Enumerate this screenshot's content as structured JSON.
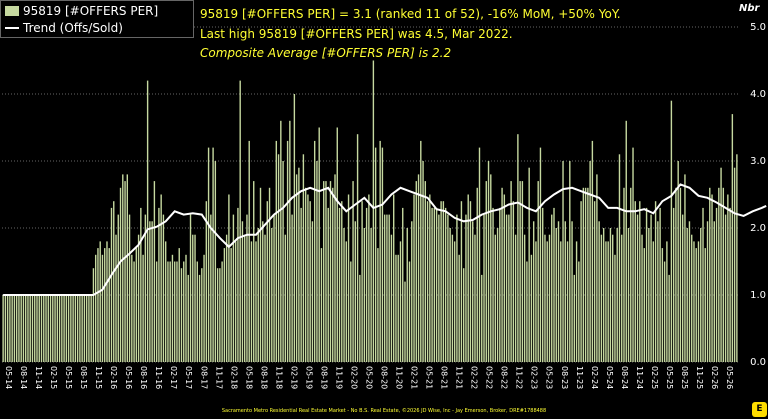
{
  "legend": {
    "bar_label": "95819 [#OFFERS PER]",
    "line_label": "Trend (Offs/Sold)"
  },
  "annotations": {
    "line1": "95819 [#OFFERS PER] = 3.1 (ranked 11 of 52), -16% MoM, +50% YoY.",
    "line2": "Last high 95819 [#OFFERS PER] was 4.5, Mar 2022.",
    "line3": "Composite Average [#OFFERS PER] is 2.2"
  },
  "footer": "Sacramento Metro Residential Real Estate Market - No B.S. Real Estate, ©2026 JD Wise, Inc - Jay Emerson, Broker, DRE#1788488",
  "colors": {
    "bar": "#c6d9a0",
    "trend": "#ffffff",
    "grid": "#666666",
    "annotation": "#ffff33",
    "background": "#000000"
  },
  "chart_data": {
    "type": "bar",
    "ylabel": "Nbr",
    "ylim": [
      0,
      5
    ],
    "yticks": [
      "0.0",
      "1.0",
      "2.0",
      "3.0",
      "4.0",
      "5.0"
    ],
    "xtick_labels": [
      "05-14",
      "08-14",
      "11-14",
      "02-15",
      "05-15",
      "08-15",
      "11-15",
      "02-16",
      "05-16",
      "08-16",
      "11-16",
      "02-17",
      "05-17",
      "08-17",
      "11-17",
      "02-18",
      "05-18",
      "08-18",
      "11-18",
      "02-19",
      "05-19",
      "08-19",
      "11-19",
      "02-20",
      "05-20",
      "08-20",
      "11-20",
      "02-21",
      "05-21",
      "08-21",
      "11-21",
      "02-22",
      "05-22",
      "08-22",
      "11-22",
      "02-23",
      "05-23",
      "08-23",
      "11-23",
      "02-24",
      "05-24",
      "08-24",
      "11-24",
      "02-25",
      "05-25",
      "08-25",
      "11-25",
      "02-26",
      "05-26"
    ],
    "series": [
      {
        "name": "95819 [#OFFERS PER]",
        "type": "bar",
        "values": [
          1,
          1,
          1,
          1,
          1,
          1,
          1,
          1,
          1,
          1,
          1,
          1,
          1,
          1,
          1,
          1,
          1,
          1,
          1,
          1,
          1,
          1,
          1,
          1,
          1,
          1,
          1,
          1,
          1,
          1,
          1,
          1,
          1,
          1,
          1,
          1,
          1,
          1,
          1,
          1,
          1.4,
          1.6,
          1.7,
          1.8,
          1.6,
          1.7,
          1.8,
          1.7,
          2.3,
          2.4,
          1.9,
          2.2,
          2.6,
          2.8,
          2.7,
          2.8,
          2.2,
          1.6,
          1.5,
          1.7,
          1.9,
          2.3,
          1.6,
          2.2,
          4.2,
          2.1,
          2.1,
          2.7,
          1.5,
          2.3,
          2.5,
          2.2,
          1.8,
          1.5,
          1.5,
          1.6,
          1.5,
          1.5,
          1.7,
          1.4,
          1.5,
          1.6,
          1.3,
          2.2,
          1.9,
          1.9,
          1.5,
          1.3,
          1.4,
          1.6,
          2.4,
          3.2,
          2.2,
          3.2,
          3.0,
          1.4,
          1.4,
          1.5,
          1.7,
          1.9,
          2.5,
          1.7,
          2.2,
          1.8,
          2.3,
          4.2,
          2.1,
          1.9,
          2.2,
          3.3,
          1.8,
          2.7,
          1.8,
          2.0,
          2.6,
          2.1,
          1.9,
          2.4,
          2.6,
          2.0,
          2.2,
          3.3,
          3.1,
          3.6,
          3.0,
          1.9,
          3.3,
          3.6,
          2.2,
          4.0,
          2.8,
          2.9,
          2.3,
          3.1,
          2.6,
          2.5,
          2.4,
          2.1,
          3.3,
          3.0,
          3.5,
          1.7,
          2.7,
          2.7,
          2.3,
          2.7,
          2.6,
          2.8,
          3.5,
          2.3,
          2.4,
          2.0,
          1.8,
          2.5,
          1.5,
          2.7,
          2.1,
          3.4,
          1.3,
          2.4,
          2.0,
          2.3,
          2.5,
          2.0,
          4.5,
          3.2,
          1.7,
          3.3,
          3.2,
          2.2,
          2.2,
          2.2,
          1.9,
          2.5,
          1.6,
          1.6,
          1.8,
          2.3,
          1.2,
          2.0,
          1.5,
          2.1,
          2.5,
          2.7,
          2.8,
          3.3,
          3.0,
          2.7,
          2.4,
          2.5,
          2.3,
          2.3,
          2.3,
          2.2,
          2.4,
          2.4,
          2.3,
          2.2,
          2.0,
          1.9,
          1.8,
          2.2,
          1.6,
          2.4,
          1.4,
          2.2,
          2.5,
          2.4,
          2.1,
          1.9,
          2.6,
          3.2,
          1.3,
          2.2,
          2.7,
          3.0,
          2.8,
          2.3,
          1.9,
          2.0,
          2.3,
          2.6,
          2.5,
          2.2,
          2.2,
          2.7,
          2.4,
          1.9,
          3.4,
          2.7,
          2.7,
          1.9,
          1.5,
          2.9,
          1.6,
          2.1,
          1.8,
          2.7,
          3.2,
          2.3,
          1.9,
          1.8,
          1.9,
          2.2,
          2.3,
          2.0,
          2.1,
          1.8,
          3.0,
          2.1,
          1.8,
          3.0,
          2.1,
          1.3,
          1.8,
          1.5,
          2.4,
          2.6,
          2.6,
          2.6,
          3.0,
          3.3,
          2.4,
          2.8,
          2.1,
          1.9,
          2.0,
          1.8,
          1.8,
          2.0,
          1.9,
          1.6,
          2.0,
          3.1,
          1.9,
          2.6,
          3.6,
          2.0,
          2.6,
          3.2,
          2.4,
          2.2,
          2.4,
          1.9,
          1.7,
          2.3,
          2.0,
          2.2,
          1.8,
          2.4,
          2.1,
          2.3,
          1.7,
          1.5,
          1.8,
          1.3,
          3.9,
          2.3,
          2.6,
          3.0,
          2.6,
          2.2,
          2.8,
          2.0,
          2.1,
          1.9,
          1.8,
          1.7,
          1.8,
          2.0,
          2.3,
          1.7,
          2.1,
          2.6,
          2.5,
          2.1,
          2.3,
          2.6,
          2.9,
          2.6,
          2.2,
          2.5,
          2.3,
          3.7,
          2.9,
          3.1
        ]
      },
      {
        "name": "Trend (Offs/Sold)",
        "type": "line",
        "points": [
          {
            "x": 0,
            "y": 1.0
          },
          {
            "x": 40,
            "y": 1.0
          },
          {
            "x": 44,
            "y": 1.08
          },
          {
            "x": 48,
            "y": 1.3
          },
          {
            "x": 52,
            "y": 1.5
          },
          {
            "x": 56,
            "y": 1.62
          },
          {
            "x": 60,
            "y": 1.75
          },
          {
            "x": 64,
            "y": 1.98
          },
          {
            "x": 68,
            "y": 2.02
          },
          {
            "x": 72,
            "y": 2.1
          },
          {
            "x": 76,
            "y": 2.25
          },
          {
            "x": 80,
            "y": 2.2
          },
          {
            "x": 84,
            "y": 2.22
          },
          {
            "x": 88,
            "y": 2.2
          },
          {
            "x": 92,
            "y": 2.0
          },
          {
            "x": 96,
            "y": 1.85
          },
          {
            "x": 100,
            "y": 1.72
          },
          {
            "x": 104,
            "y": 1.85
          },
          {
            "x": 108,
            "y": 1.9
          },
          {
            "x": 112,
            "y": 1.9
          },
          {
            "x": 116,
            "y": 2.05
          },
          {
            "x": 120,
            "y": 2.2
          },
          {
            "x": 124,
            "y": 2.3
          },
          {
            "x": 128,
            "y": 2.45
          },
          {
            "x": 132,
            "y": 2.55
          },
          {
            "x": 136,
            "y": 2.6
          },
          {
            "x": 140,
            "y": 2.55
          },
          {
            "x": 144,
            "y": 2.6
          },
          {
            "x": 148,
            "y": 2.4
          },
          {
            "x": 152,
            "y": 2.25
          },
          {
            "x": 156,
            "y": 2.35
          },
          {
            "x": 160,
            "y": 2.45
          },
          {
            "x": 164,
            "y": 2.3
          },
          {
            "x": 168,
            "y": 2.35
          },
          {
            "x": 172,
            "y": 2.5
          },
          {
            "x": 176,
            "y": 2.6
          },
          {
            "x": 180,
            "y": 2.55
          },
          {
            "x": 184,
            "y": 2.5
          },
          {
            "x": 188,
            "y": 2.45
          },
          {
            "x": 192,
            "y": 2.28
          },
          {
            "x": 196,
            "y": 2.25
          },
          {
            "x": 200,
            "y": 2.15
          },
          {
            "x": 204,
            "y": 2.1
          },
          {
            "x": 208,
            "y": 2.12
          },
          {
            "x": 212,
            "y": 2.2
          },
          {
            "x": 216,
            "y": 2.25
          },
          {
            "x": 220,
            "y": 2.28
          },
          {
            "x": 224,
            "y": 2.35
          },
          {
            "x": 228,
            "y": 2.38
          },
          {
            "x": 232,
            "y": 2.3
          },
          {
            "x": 236,
            "y": 2.25
          },
          {
            "x": 240,
            "y": 2.4
          },
          {
            "x": 244,
            "y": 2.5
          },
          {
            "x": 248,
            "y": 2.58
          },
          {
            "x": 252,
            "y": 2.6
          },
          {
            "x": 256,
            "y": 2.55
          },
          {
            "x": 260,
            "y": 2.5
          },
          {
            "x": 264,
            "y": 2.45
          },
          {
            "x": 268,
            "y": 2.3
          },
          {
            "x": 272,
            "y": 2.3
          },
          {
            "x": 276,
            "y": 2.25
          },
          {
            "x": 280,
            "y": 2.25
          },
          {
            "x": 284,
            "y": 2.28
          },
          {
            "x": 288,
            "y": 2.22
          },
          {
            "x": 292,
            "y": 2.4
          },
          {
            "x": 296,
            "y": 2.48
          },
          {
            "x": 300,
            "y": 2.65
          },
          {
            "x": 304,
            "y": 2.6
          },
          {
            "x": 308,
            "y": 2.48
          },
          {
            "x": 312,
            "y": 2.45
          },
          {
            "x": 316,
            "y": 2.38
          },
          {
            "x": 320,
            "y": 2.3
          },
          {
            "x": 324,
            "y": 2.22
          },
          {
            "x": 328,
            "y": 2.18
          },
          {
            "x": 332,
            "y": 2.25
          },
          {
            "x": 336,
            "y": 2.3
          },
          {
            "x": 338,
            "y": 2.33
          }
        ]
      }
    ],
    "grid": true,
    "legend_position": "top-left"
  }
}
